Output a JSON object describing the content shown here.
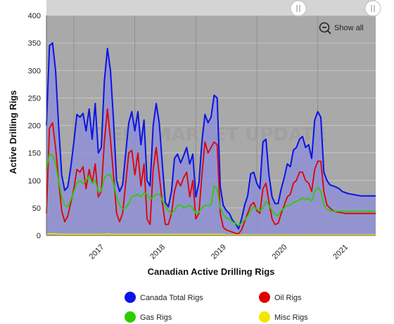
{
  "chart_data": {
    "type": "area",
    "xlabel": "Canadian Active Drilling Rigs",
    "ylabel": "Active Drilling Rigs",
    "ylim": [
      0,
      400
    ],
    "yticks": [
      0,
      50,
      100,
      150,
      200,
      250,
      300,
      350,
      400
    ],
    "xlim": [
      2016.55,
      2021.95
    ],
    "xtick_labels": [
      "2017",
      "2018",
      "2019",
      "2020",
      "2021"
    ],
    "grid": true,
    "legend_position": "bottom",
    "watermark": "STEEL MARKET UPDATE",
    "x": [
      2016.55,
      2016.6,
      2016.65,
      2016.7,
      2016.75,
      2016.8,
      2016.85,
      2016.9,
      2016.95,
      2017.0,
      2017.05,
      2017.1,
      2017.15,
      2017.2,
      2017.25,
      2017.3,
      2017.35,
      2017.4,
      2017.45,
      2017.5,
      2017.55,
      2017.6,
      2017.65,
      2017.7,
      2017.75,
      2017.8,
      2017.85,
      2017.9,
      2017.95,
      2018.0,
      2018.05,
      2018.1,
      2018.15,
      2018.2,
      2018.25,
      2018.3,
      2018.35,
      2018.4,
      2018.45,
      2018.5,
      2018.55,
      2018.6,
      2018.65,
      2018.7,
      2018.75,
      2018.8,
      2018.85,
      2018.9,
      2018.95,
      2019.0,
      2019.05,
      2019.1,
      2019.15,
      2019.2,
      2019.25,
      2019.3,
      2019.35,
      2019.4,
      2019.45,
      2019.5,
      2019.55,
      2019.6,
      2019.65,
      2019.7,
      2019.75,
      2019.8,
      2019.85,
      2019.9,
      2019.95,
      2020.0,
      2020.05,
      2020.1,
      2020.15,
      2020.2,
      2020.25,
      2020.3,
      2020.35,
      2020.4,
      2020.45,
      2020.5,
      2020.55,
      2020.6,
      2020.65,
      2020.7,
      2020.75,
      2020.8,
      2020.85,
      2020.9,
      2020.95,
      2021.0,
      2021.05,
      2021.1,
      2021.15,
      2021.2,
      2021.25,
      2021.3,
      2021.35,
      2021.4,
      2021.45,
      2021.5,
      2021.55,
      2021.6,
      2021.65,
      2021.7,
      2021.75,
      2021.8,
      2021.85,
      2021.9,
      2021.95
    ],
    "series": [
      {
        "name": "Canada Total Rigs",
        "color": "#0a14e6",
        "values": [
          200,
          345,
          350,
          300,
          200,
          110,
          82,
          88,
          125,
          170,
          220,
          215,
          222,
          190,
          230,
          175,
          240,
          150,
          160,
          280,
          340,
          300,
          210,
          100,
          80,
          92,
          150,
          205,
          225,
          190,
          225,
          165,
          210,
          100,
          90,
          200,
          240,
          205,
          130,
          60,
          52,
          80,
          140,
          148,
          132,
          145,
          160,
          130,
          148,
          70,
          95,
          170,
          220,
          205,
          215,
          255,
          250,
          90,
          55,
          45,
          40,
          28,
          22,
          12,
          30,
          55,
          72,
          112,
          115,
          95,
          85,
          170,
          175,
          110,
          70,
          58,
          58,
          85,
          105,
          130,
          125,
          155,
          160,
          175,
          180,
          160,
          165,
          140,
          210,
          225,
          215,
          115,
          100,
          92,
          90,
          88,
          85,
          80,
          78,
          76,
          75,
          74,
          73,
          72,
          72,
          72,
          72,
          72,
          72
        ],
        "note": "approximate"
      },
      {
        "name": "Oil Rigs",
        "color": "#e00000",
        "values": [
          40,
          195,
          205,
          160,
          100,
          45,
          25,
          35,
          60,
          85,
          120,
          115,
          125,
          85,
          120,
          95,
          130,
          70,
          80,
          170,
          230,
          175,
          110,
          40,
          25,
          40,
          95,
          150,
          155,
          110,
          150,
          90,
          130,
          30,
          20,
          120,
          160,
          110,
          60,
          20,
          20,
          40,
          80,
          100,
          90,
          105,
          115,
          70,
          100,
          30,
          40,
          110,
          170,
          150,
          160,
          170,
          165,
          40,
          15,
          10,
          8,
          6,
          4,
          3,
          10,
          25,
          40,
          55,
          60,
          45,
          40,
          85,
          95,
          60,
          30,
          20,
          22,
          40,
          55,
          70,
          75,
          95,
          100,
          115,
          115,
          100,
          95,
          80,
          120,
          135,
          135,
          80,
          55,
          50,
          45,
          43,
          42,
          41,
          40,
          40,
          40,
          40,
          40,
          40,
          40,
          40,
          40,
          40,
          40
        ]
      },
      {
        "name": "Gas Rigs",
        "color": "#2ecc00",
        "values": [
          120,
          148,
          145,
          130,
          100,
          70,
          55,
          52,
          65,
          80,
          95,
          100,
          95,
          100,
          108,
          95,
          100,
          80,
          80,
          105,
          110,
          110,
          95,
          70,
          55,
          48,
          50,
          58,
          70,
          72,
          75,
          70,
          78,
          75,
          65,
          70,
          75,
          75,
          65,
          52,
          45,
          40,
          45,
          55,
          55,
          50,
          52,
          55,
          50,
          40,
          42,
          50,
          55,
          55,
          55,
          90,
          85,
          50,
          38,
          32,
          30,
          25,
          22,
          18,
          22,
          28,
          35,
          45,
          52,
          48,
          45,
          50,
          62,
          55,
          45,
          38,
          36,
          45,
          50,
          55,
          55,
          60,
          62,
          65,
          68,
          65,
          68,
          62,
          80,
          88,
          80,
          55,
          48,
          45,
          44,
          44,
          44,
          44,
          44,
          44,
          44,
          44,
          44,
          44,
          44,
          44,
          44,
          44,
          44
        ]
      },
      {
        "name": "Misc Rigs",
        "color": "#f2e600",
        "values": [
          2,
          3,
          3,
          3,
          2,
          2,
          2,
          2,
          2,
          2,
          2,
          2,
          2,
          2,
          2,
          2,
          2,
          2,
          2,
          2,
          3,
          2,
          2,
          2,
          2,
          2,
          2,
          2,
          2,
          2,
          2,
          2,
          2,
          2,
          2,
          2,
          2,
          2,
          2,
          2,
          2,
          2,
          2,
          2,
          2,
          2,
          2,
          2,
          2,
          2,
          2,
          2,
          2,
          2,
          2,
          2,
          2,
          2,
          2,
          1,
          1,
          1,
          1,
          1,
          1,
          1,
          1,
          1,
          1,
          1,
          1,
          1,
          1,
          1,
          1,
          1,
          1,
          1,
          1,
          1,
          1,
          1,
          1,
          1,
          1,
          1,
          1,
          1,
          1,
          1,
          1,
          1,
          1,
          1,
          1,
          1,
          1,
          1,
          1,
          1,
          1,
          1,
          1,
          1,
          1,
          1,
          1,
          1,
          1
        ]
      }
    ]
  },
  "ui": {
    "show_all_label": "Show all"
  },
  "legend": [
    {
      "label": "Canada Total Rigs",
      "color": "#0a14e6"
    },
    {
      "label": "Oil Rigs",
      "color": "#e00000"
    },
    {
      "label": "Gas Rigs",
      "color": "#2ecc00"
    },
    {
      "label": "Misc Rigs",
      "color": "#f2e600"
    }
  ],
  "colors": {
    "plot_background": "#a9a9a9",
    "navigator_track": "#d4d4d4",
    "total_area_fill": "#8f91d6"
  }
}
